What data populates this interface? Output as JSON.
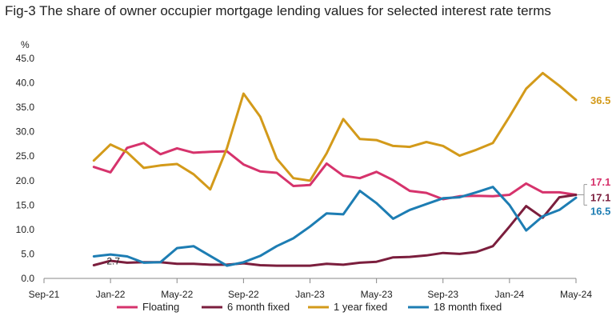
{
  "chart_data": {
    "type": "line",
    "title": "Fig-3 The share of owner occupier mortgage lending values for selected interest rate terms",
    "ylabel": "%",
    "xlabel": "",
    "ylim": [
      0,
      45
    ],
    "yticks": [
      "0.0",
      "5.0",
      "10.0",
      "15.0",
      "20.0",
      "25.0",
      "30.0",
      "35.0",
      "40.0",
      "45.0"
    ],
    "xticks": [
      "Sep-21",
      "Jan-22",
      "May-22",
      "Sep-22",
      "Jan-23",
      "May-23",
      "Sep-23",
      "Jan-24",
      "May-24"
    ],
    "x": [
      "Dec-21",
      "Jan-22",
      "Feb-22",
      "Mar-22",
      "Apr-22",
      "May-22",
      "Jun-22",
      "Jul-22",
      "Aug-22",
      "Sep-22",
      "Oct-22",
      "Nov-22",
      "Dec-22",
      "Jan-23",
      "Feb-23",
      "Mar-23",
      "Apr-23",
      "May-23",
      "Jun-23",
      "Jul-23",
      "Aug-23",
      "Sep-23",
      "Oct-23",
      "Nov-23",
      "Dec-23",
      "Jan-24",
      "Feb-24",
      "Mar-24",
      "Apr-24",
      "May-24"
    ],
    "legend_position": "bottom",
    "series": [
      {
        "name": "Floating",
        "color": "#d6336c",
        "values": [
          22.8,
          21.7,
          26.7,
          27.7,
          25.4,
          26.6,
          25.7,
          25.9,
          26.0,
          23.3,
          21.9,
          21.6,
          18.9,
          19.1,
          23.5,
          21.0,
          20.5,
          21.8,
          20.1,
          17.9,
          17.5,
          16.2,
          16.8,
          16.9,
          16.8,
          17.1,
          19.4,
          17.6,
          17.6,
          17.1
        ]
      },
      {
        "name": "6 month fixed",
        "color": "#7b1e3d",
        "values": [
          2.7,
          3.6,
          3.2,
          3.3,
          3.3,
          3.0,
          3.0,
          2.8,
          2.8,
          3.1,
          2.7,
          2.6,
          2.6,
          2.6,
          3.0,
          2.8,
          3.2,
          3.4,
          4.3,
          4.4,
          4.7,
          5.2,
          5.0,
          5.4,
          6.6,
          10.6,
          14.8,
          12.4,
          16.6,
          17.1
        ]
      },
      {
        "name": "1 year fixed",
        "color": "#d39a1a",
        "values": [
          24.1,
          27.4,
          25.8,
          22.6,
          23.1,
          23.4,
          21.3,
          18.2,
          26.6,
          37.8,
          33.1,
          24.5,
          20.5,
          20.0,
          25.6,
          32.6,
          28.5,
          28.3,
          27.1,
          26.9,
          27.9,
          27.1,
          25.1,
          26.3,
          27.7,
          33.1,
          38.8,
          42.0,
          39.4,
          36.5
        ]
      },
      {
        "name": "18 month fixed",
        "color": "#1d7db3",
        "values": [
          4.5,
          4.9,
          4.5,
          3.2,
          3.3,
          6.2,
          6.6,
          4.6,
          2.6,
          3.3,
          4.6,
          6.6,
          8.2,
          10.6,
          13.3,
          13.1,
          17.9,
          15.4,
          12.2,
          14.0,
          15.2,
          16.4,
          16.6,
          17.6,
          18.7,
          15.0,
          9.8,
          12.7,
          14.0,
          16.5
        ]
      }
    ],
    "annotations": {
      "floating_end": "17.1",
      "six_month_end": "17.1",
      "one_year_end": "36.5",
      "eighteen_month_end": "16.5",
      "six_month_start": "2.7"
    }
  }
}
